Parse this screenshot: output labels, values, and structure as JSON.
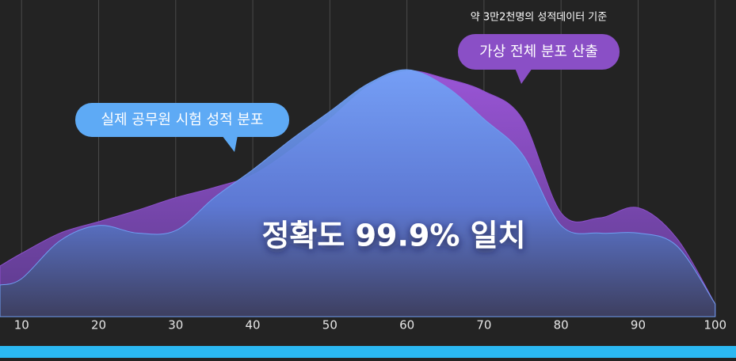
{
  "chart_data": {
    "type": "area",
    "x": [
      7.2,
      10,
      15,
      20,
      25,
      30,
      35,
      40,
      45,
      50,
      55,
      60,
      65,
      70,
      75,
      80,
      85,
      90,
      95,
      100
    ],
    "series": [
      {
        "color": "#8c4fcb",
        "values": [
          20,
          25,
          33,
          37.5,
          42,
          47,
          51,
          56,
          66,
          78,
          91,
          97,
          94,
          89,
          78,
          41,
          39,
          43,
          31,
          5
        ]
      },
      {
        "color": "#6f9ef2",
        "values": [
          12.5,
          15,
          30,
          36,
          33,
          34,
          47,
          58,
          70,
          81,
          92,
          97.5,
          91,
          78,
          64,
          36,
          33,
          33,
          28,
          5
        ]
      }
    ],
    "xlim": [
      7.2,
      102.7
    ],
    "ylim": [
      0,
      100
    ],
    "xticks": [
      10,
      20,
      30,
      40,
      50,
      60,
      70,
      80,
      90,
      100
    ],
    "grid": true,
    "annotations": [
      "약 3만2천명의 성적데이터 기준",
      "가상 전체 분포 산출",
      "실제 공무원 시험 성적 분포",
      "정확도 99.9% 일치"
    ]
  }
}
